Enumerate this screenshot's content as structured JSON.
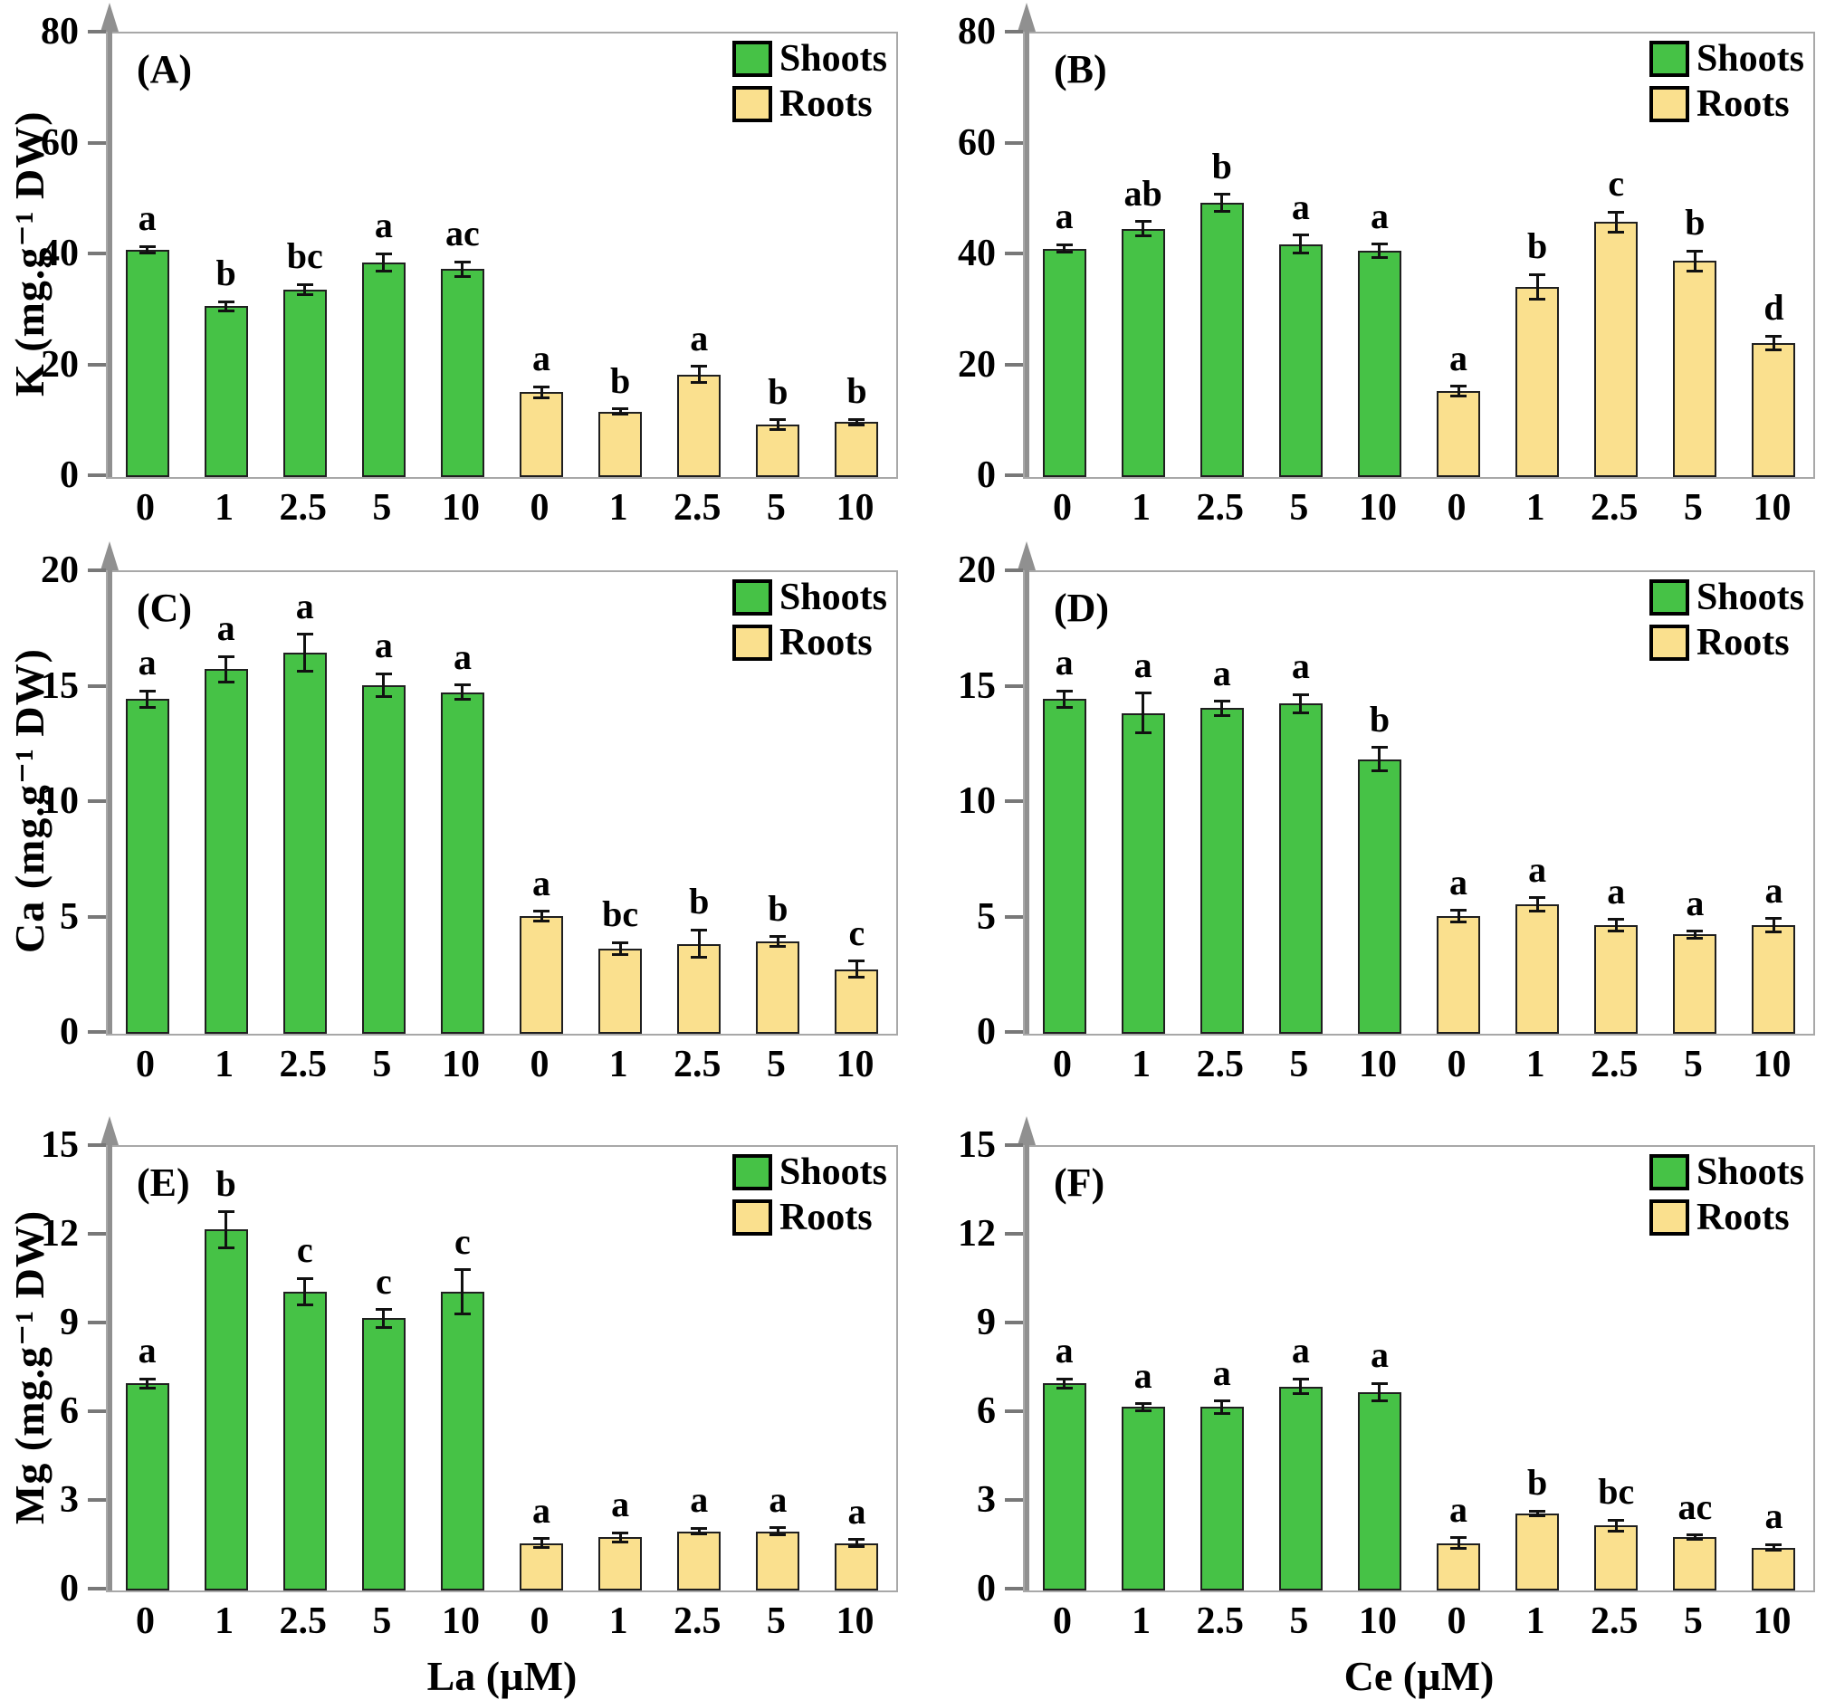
{
  "legend": {
    "shoots": "Shoots",
    "roots": "Roots"
  },
  "colors": {
    "shoots": "#46c246",
    "roots": "#fae08e",
    "bar_border": "#1f1f1f",
    "axis_gray": "#909090",
    "frame_gray": "#a8a8a8"
  },
  "chart_data": [
    {
      "type": "bar",
      "panel": "(A)",
      "ylabel": "K (mg.g⁻¹ DW)",
      "xlabel": "",
      "ylim": [
        0,
        80
      ],
      "yticks": [
        0,
        20,
        40,
        60,
        80
      ],
      "categories": [
        "0",
        "1",
        "2.5",
        "5",
        "10",
        "0",
        "1",
        "2.5",
        "5",
        "10"
      ],
      "legend_position": "top-right",
      "grid": false,
      "series": [
        {
          "name": "Shoots",
          "values": [
            41.0,
            30.8,
            33.8,
            38.7,
            37.5
          ],
          "errors": [
            0.6,
            0.8,
            0.9,
            1.6,
            1.3
          ],
          "letters": [
            "a",
            "b",
            "bc",
            "a",
            "ac"
          ]
        },
        {
          "name": "Roots",
          "values": [
            15.3,
            11.8,
            18.5,
            9.4,
            9.9
          ],
          "errors": [
            1.0,
            0.5,
            1.5,
            0.9,
            0.5
          ],
          "letters": [
            "a",
            "b",
            "a",
            "b",
            "b"
          ]
        }
      ]
    },
    {
      "type": "bar",
      "panel": "(B)",
      "ylabel": "",
      "xlabel": "",
      "ylim": [
        0,
        80
      ],
      "yticks": [
        0,
        20,
        40,
        60,
        80
      ],
      "categories": [
        "0",
        "1",
        "2.5",
        "5",
        "10",
        "0",
        "1",
        "2.5",
        "5",
        "10"
      ],
      "legend_position": "top-right",
      "grid": false,
      "series": [
        {
          "name": "Shoots",
          "values": [
            41.2,
            44.8,
            49.5,
            42.0,
            40.8
          ],
          "errors": [
            0.7,
            1.3,
            1.5,
            1.6,
            1.2
          ],
          "letters": [
            "a",
            "ab",
            "b",
            "a",
            "a"
          ]
        },
        {
          "name": "Roots",
          "values": [
            15.5,
            34.3,
            46.0,
            39.0,
            24.2
          ],
          "errors": [
            0.9,
            2.2,
            1.8,
            1.8,
            1.2
          ],
          "letters": [
            "a",
            "b",
            "c",
            "b",
            "d"
          ]
        }
      ]
    },
    {
      "type": "bar",
      "panel": "(C)",
      "ylabel": "Ca (mg.g⁻¹ DW)",
      "xlabel": "",
      "ylim": [
        0,
        20
      ],
      "yticks": [
        0,
        5,
        10,
        15,
        20
      ],
      "categories": [
        "0",
        "1",
        "2.5",
        "5",
        "10",
        "0",
        "1",
        "2.5",
        "5",
        "10"
      ],
      "legend_position": "top-right",
      "grid": false,
      "series": [
        {
          "name": "Shoots",
          "values": [
            14.5,
            15.8,
            16.5,
            15.1,
            14.8
          ],
          "errors": [
            0.35,
            0.55,
            0.8,
            0.5,
            0.3
          ],
          "letters": [
            "a",
            "a",
            "a",
            "a",
            "a"
          ]
        },
        {
          "name": "Roots",
          "values": [
            5.1,
            3.7,
            3.9,
            4.0,
            2.8
          ],
          "errors": [
            0.2,
            0.25,
            0.6,
            0.2,
            0.35
          ],
          "letters": [
            "a",
            "bc",
            "b",
            "b",
            "c"
          ]
        }
      ]
    },
    {
      "type": "bar",
      "panel": "(D)",
      "ylabel": "",
      "xlabel": "",
      "ylim": [
        0,
        20
      ],
      "yticks": [
        0,
        5,
        10,
        15,
        20
      ],
      "categories": [
        "0",
        "1",
        "2.5",
        "5",
        "10",
        "0",
        "1",
        "2.5",
        "5",
        "10"
      ],
      "legend_position": "top-right",
      "grid": false,
      "series": [
        {
          "name": "Shoots",
          "values": [
            14.5,
            13.9,
            14.1,
            14.3,
            11.9
          ],
          "errors": [
            0.35,
            0.85,
            0.3,
            0.4,
            0.5
          ],
          "letters": [
            "a",
            "a",
            "a",
            "a",
            "b"
          ]
        },
        {
          "name": "Roots",
          "values": [
            5.1,
            5.6,
            4.7,
            4.3,
            4.7
          ],
          "errors": [
            0.25,
            0.3,
            0.25,
            0.15,
            0.3
          ],
          "letters": [
            "a",
            "a",
            "a",
            "a",
            "a"
          ]
        }
      ]
    },
    {
      "type": "bar",
      "panel": "(E)",
      "ylabel": "Mg (mg.g⁻¹ DW)",
      "xlabel": "La (µM)",
      "ylim": [
        0,
        15
      ],
      "yticks": [
        0,
        3,
        6,
        9,
        12,
        15
      ],
      "categories": [
        "0",
        "1",
        "2.5",
        "5",
        "10",
        "0",
        "1",
        "2.5",
        "5",
        "10"
      ],
      "legend_position": "top-right",
      "grid": false,
      "series": [
        {
          "name": "Shoots",
          "values": [
            7.0,
            12.2,
            10.1,
            9.2,
            10.1
          ],
          "errors": [
            0.15,
            0.6,
            0.45,
            0.3,
            0.75
          ],
          "letters": [
            "a",
            "b",
            "c",
            "c",
            "c"
          ]
        },
        {
          "name": "Roots",
          "values": [
            1.6,
            1.8,
            2.0,
            2.0,
            1.6
          ],
          "errors": [
            0.15,
            0.15,
            0.1,
            0.12,
            0.12
          ],
          "letters": [
            "a",
            "a",
            "a",
            "a",
            "a"
          ]
        }
      ]
    },
    {
      "type": "bar",
      "panel": "(F)",
      "ylabel": "",
      "xlabel": "Ce (µM)",
      "ylim": [
        0,
        15
      ],
      "yticks": [
        0,
        3,
        6,
        9,
        12,
        15
      ],
      "categories": [
        "0",
        "1",
        "2.5",
        "5",
        "10",
        "0",
        "1",
        "2.5",
        "5",
        "10"
      ],
      "legend_position": "top-right",
      "grid": false,
      "series": [
        {
          "name": "Shoots",
          "values": [
            7.0,
            6.2,
            6.2,
            6.9,
            6.7
          ],
          "errors": [
            0.15,
            0.12,
            0.2,
            0.25,
            0.3
          ],
          "letters": [
            "a",
            "a",
            "a",
            "a",
            "a"
          ]
        },
        {
          "name": "Roots",
          "values": [
            1.6,
            2.6,
            2.2,
            1.8,
            1.45
          ],
          "errors": [
            0.18,
            0.08,
            0.18,
            0.08,
            0.1
          ],
          "letters": [
            "a",
            "b",
            "bc",
            "ac",
            "a"
          ]
        }
      ]
    }
  ]
}
